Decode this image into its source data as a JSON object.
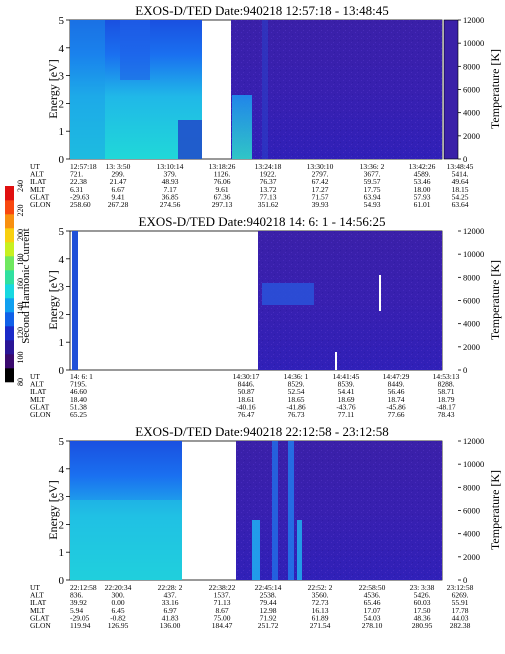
{
  "colorbar": {
    "label": "Second Harmonic Current",
    "ticks": [
      "80",
      "100",
      "120",
      "140",
      "160",
      "180",
      "200",
      "220",
      "240"
    ],
    "colors": [
      "#000000",
      "#3a0a6e",
      "#2a1596",
      "#1a2ac8",
      "#1060e8",
      "#10a0f0",
      "#18d8e0",
      "#30e0a0",
      "#70e860",
      "#c8f020",
      "#f8d010",
      "#f89010",
      "#f84810",
      "#e01010"
    ]
  },
  "panels": [
    {
      "title": "EXOS-D/TED    Date:940218  12:57:18 - 13:48:45",
      "ylabel": "Energy [eV]",
      "y2label": "Temperature [K]",
      "yticks": [
        "0",
        "1",
        "2",
        "3",
        "4",
        "5"
      ],
      "y2ticks": [
        "0",
        "2000",
        "4000",
        "6000",
        "8000",
        "10000",
        "12000"
      ],
      "row_labels": [
        "UT",
        "ALT",
        "ILAT",
        "MLT",
        "GLAT",
        "GLON"
      ],
      "columns": [
        [
          "12:57:18",
          "721.",
          "22.38",
          "6.31",
          "-29.63",
          "258.60"
        ],
        [
          "13: 3:50",
          "299.",
          "21.47",
          "6.67",
          "9.41",
          "267.28"
        ],
        [
          "13:10:14",
          "379.",
          "48.93",
          "7.17",
          "36.85",
          "274.56"
        ],
        [
          "13:18:26",
          "1126.",
          "76.06",
          "9.61",
          "67.36",
          "297.13"
        ],
        [
          "13:24:18",
          "1922.",
          "76.37",
          "13.72",
          "77.13",
          "351.62"
        ],
        [
          "13:30:10",
          "2797.",
          "67.42",
          "17.27",
          "71.57",
          "39.93"
        ],
        [
          "13:36: 2",
          "3677.",
          "59.57",
          "17.75",
          "63.94",
          "54.93"
        ],
        [
          "13:42:26",
          "4589.",
          "53.46",
          "18.00",
          "57.93",
          "61.01"
        ],
        [
          "13:48:45",
          "5414.",
          "49.64",
          "18.15",
          "54.25",
          "63.64"
        ]
      ]
    },
    {
      "title": "EXOS-D/TED    Date:940218  14: 6: 1 - 14:56:25",
      "ylabel": "Energy [eV]",
      "y2label": "Temperature [K]",
      "yticks": [
        "0",
        "1",
        "2",
        "3",
        "4",
        "5"
      ],
      "y2ticks": [
        "0",
        "2000",
        "4000",
        "6000",
        "8000",
        "10000",
        "12000"
      ],
      "row_labels": [
        "UT",
        "ALT",
        "ILAT",
        "MLT",
        "GLAT",
        "GLON"
      ],
      "columns": [
        [
          "14: 6: 1",
          "7195.",
          "46.60",
          "18.40",
          "51.38",
          "65.25"
        ],
        [
          "14:30:17",
          "8446.",
          "50.87",
          "18.61",
          "-40.16",
          "76.47"
        ],
        [
          "14:36: 1",
          "8529.",
          "52.54",
          "18.65",
          "-41.86",
          "76.73"
        ],
        [
          "14:41:45",
          "8539.",
          "54.41",
          "18.69",
          "-43.76",
          "77.11"
        ],
        [
          "14:47:29",
          "8449.",
          "56.46",
          "18.74",
          "-45.86",
          "77.66"
        ],
        [
          "14:53:13",
          "8288.",
          "58.71",
          "18.79",
          "-48.17",
          "78.43"
        ]
      ]
    },
    {
      "title": "EXOS-D/TED    Date:940218  22:12:58 - 23:12:58",
      "ylabel": "Energy [eV]",
      "y2label": "Temperature [K]",
      "yticks": [
        "0",
        "1",
        "2",
        "3",
        "4",
        "5"
      ],
      "y2ticks": [
        "0",
        "2000",
        "4000",
        "6000",
        "8000",
        "10000",
        "12000"
      ],
      "row_labels": [
        "UT",
        "ALT",
        "ILAT",
        "MLT",
        "GLAT",
        "GLON"
      ],
      "columns": [
        [
          "22:12:58",
          "836.",
          "39.92",
          "5.94",
          "-29.05",
          "119.94"
        ],
        [
          "22:20:34",
          "300.",
          "0.00",
          "6.45",
          "-0.82",
          "126.95"
        ],
        [
          "22:28: 2",
          "437.",
          "33.16",
          "6.97",
          "41.83",
          "136.00"
        ],
        [
          "22:38:22",
          "1537.",
          "71.13",
          "8.67",
          "75.00",
          "184.47"
        ],
        [
          "22:45:14",
          "2538.",
          "79.44",
          "12.98",
          "71.92",
          "251.72"
        ],
        [
          "22:52: 2",
          "3560.",
          "72.73",
          "16.13",
          "61.89",
          "271.54"
        ],
        [
          "22:58:50",
          "4536.",
          "65.46",
          "17.07",
          "54.03",
          "278.10"
        ],
        [
          "23: 3:38",
          "5426.",
          "60.03",
          "17.50",
          "48.36",
          "280.95"
        ],
        [
          "23:12:58",
          "6269.",
          "55.91",
          "17.78",
          "44.03",
          "282.38"
        ]
      ]
    }
  ]
}
